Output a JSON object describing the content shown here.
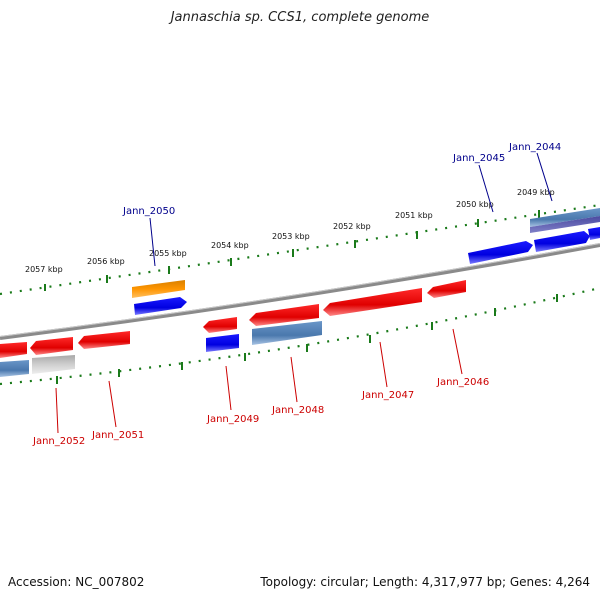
{
  "title": "Jannaschia sp. CCS1, complete genome",
  "footer": {
    "accession": "Accession: NC_007802",
    "summary": "Topology: circular; Length: 4,317,977 bp; Genes: 4,264"
  },
  "colors": {
    "forward_label": "#00008b",
    "reverse_label": "#cc0000",
    "backbone": "#888888",
    "ticks": "#1a7a1a"
  },
  "kbp_labels": [
    "2049 kbp",
    "2050 kbp",
    "2051 kbp",
    "2052 kbp",
    "2053 kbp",
    "2054 kbp",
    "2055 kbp",
    "2056 kbp",
    "2057 kbp"
  ],
  "forward_gene_labels": [
    "Jann_2044",
    "Jann_2045",
    "Jann_2050"
  ],
  "reverse_gene_labels": [
    "Jann_2046",
    "Jann_2047",
    "Jann_2048",
    "Jann_2049",
    "Jann_2051",
    "Jann_2052"
  ]
}
